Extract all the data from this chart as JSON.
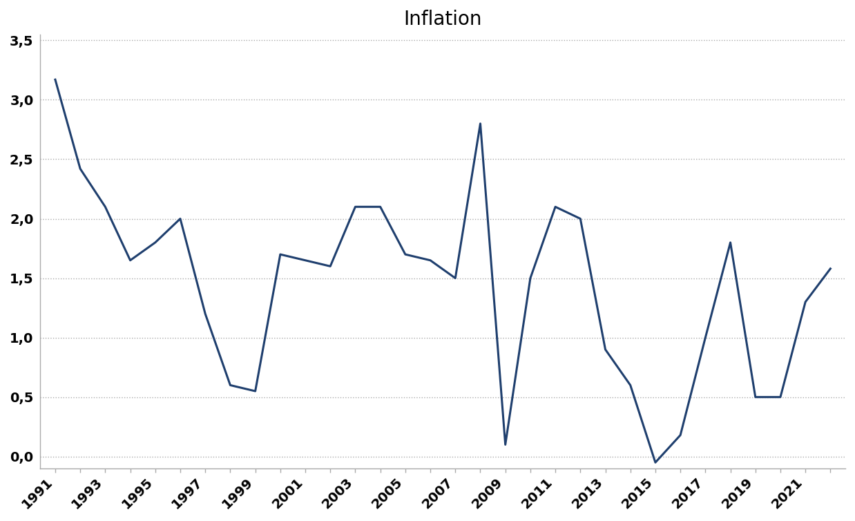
{
  "title": "Inflation",
  "years": [
    1991,
    1992,
    1993,
    1994,
    1995,
    1996,
    1997,
    1998,
    1999,
    2000,
    2001,
    2002,
    2003,
    2004,
    2005,
    2006,
    2007,
    2008,
    2009,
    2010,
    2011,
    2012,
    2013,
    2014,
    2015,
    2016,
    2017,
    2018,
    2019,
    2020,
    2021,
    2022
  ],
  "values": [
    3.17,
    2.42,
    2.1,
    1.65,
    1.8,
    2.0,
    1.2,
    0.6,
    0.55,
    1.7,
    1.65,
    1.6,
    2.1,
    2.1,
    1.7,
    1.65,
    1.5,
    2.8,
    0.1,
    1.5,
    2.1,
    2.0,
    0.9,
    0.6,
    -0.05,
    0.18,
    1.0,
    1.8,
    0.5,
    0.5,
    1.3,
    1.58
  ],
  "line_color": "#1F3F6E",
  "line_width": 2.2,
  "background_color": "#ffffff",
  "grid_color": "#aaaaaa",
  "spine_color": "#aaaaaa",
  "ylim": [
    -0.1,
    3.55
  ],
  "yticks": [
    0.0,
    0.5,
    1.0,
    1.5,
    2.0,
    2.5,
    3.0,
    3.5
  ],
  "ytick_labels": [
    "0,0",
    "0,5",
    "1,0",
    "1,5",
    "2,0",
    "2,5",
    "3,0",
    "3,5"
  ],
  "xlim_left": 1990.4,
  "xlim_right": 2022.6,
  "title_fontsize": 20,
  "tick_fontsize": 14,
  "title_fontweight": "normal"
}
